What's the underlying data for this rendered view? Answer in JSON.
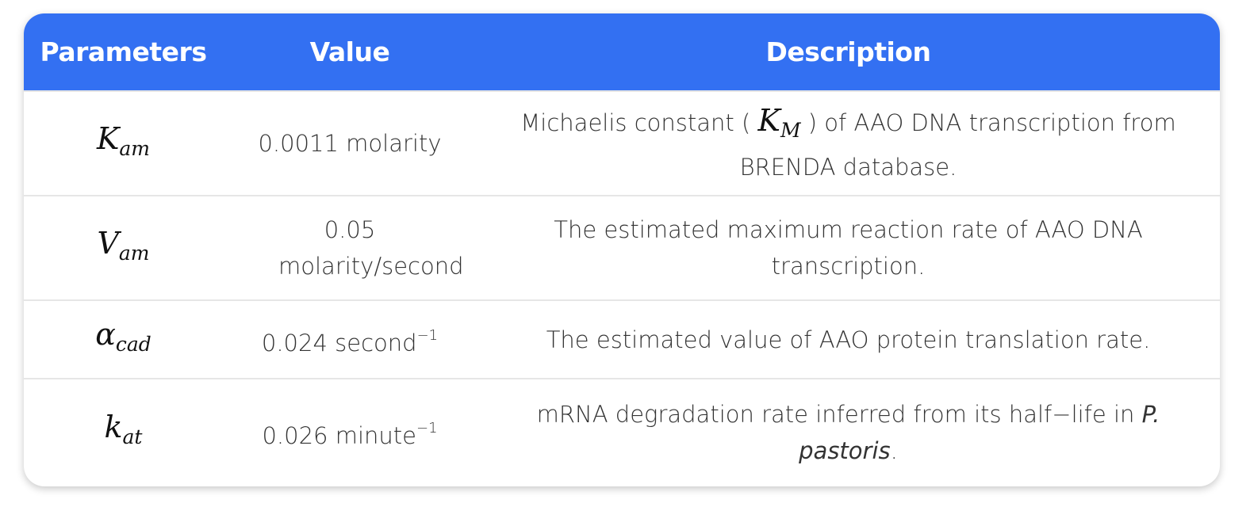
{
  "table": {
    "headers": [
      "Parameters",
      "Value",
      "Description"
    ],
    "rows": [
      {
        "symbol": "K",
        "subscript": "am",
        "value": "0.0011 molarity",
        "value_sup": "",
        "desc_before": "Michaelis constant ( ",
        "desc_math": "K",
        "desc_math_sub": "M",
        "desc_after": " ) of AAO DNA transcription from BRENDA database."
      },
      {
        "symbol": "V",
        "subscript": "am",
        "value": "0.05 molarity/second",
        "value_sup": "",
        "desc": "The estimated maximum reaction rate of AAO DNA transcription."
      },
      {
        "symbol": "α",
        "subscript": "cad",
        "value": "0.024 second",
        "value_sup": "−1",
        "desc": "The estimated value of AAO protein translation rate."
      },
      {
        "symbol": "k",
        "subscript": "at",
        "value": "0.026 minute",
        "value_sup": "−1",
        "desc_before": "mRNA degradation rate inferred from its half−life in ",
        "desc_italic": "P. pastoris",
        "desc_after": "."
      }
    ]
  },
  "colors": {
    "header_bg": "#3370f2",
    "header_text": "#ffffff",
    "row_divider": "#e6e6e6",
    "body_text": "#333333"
  }
}
